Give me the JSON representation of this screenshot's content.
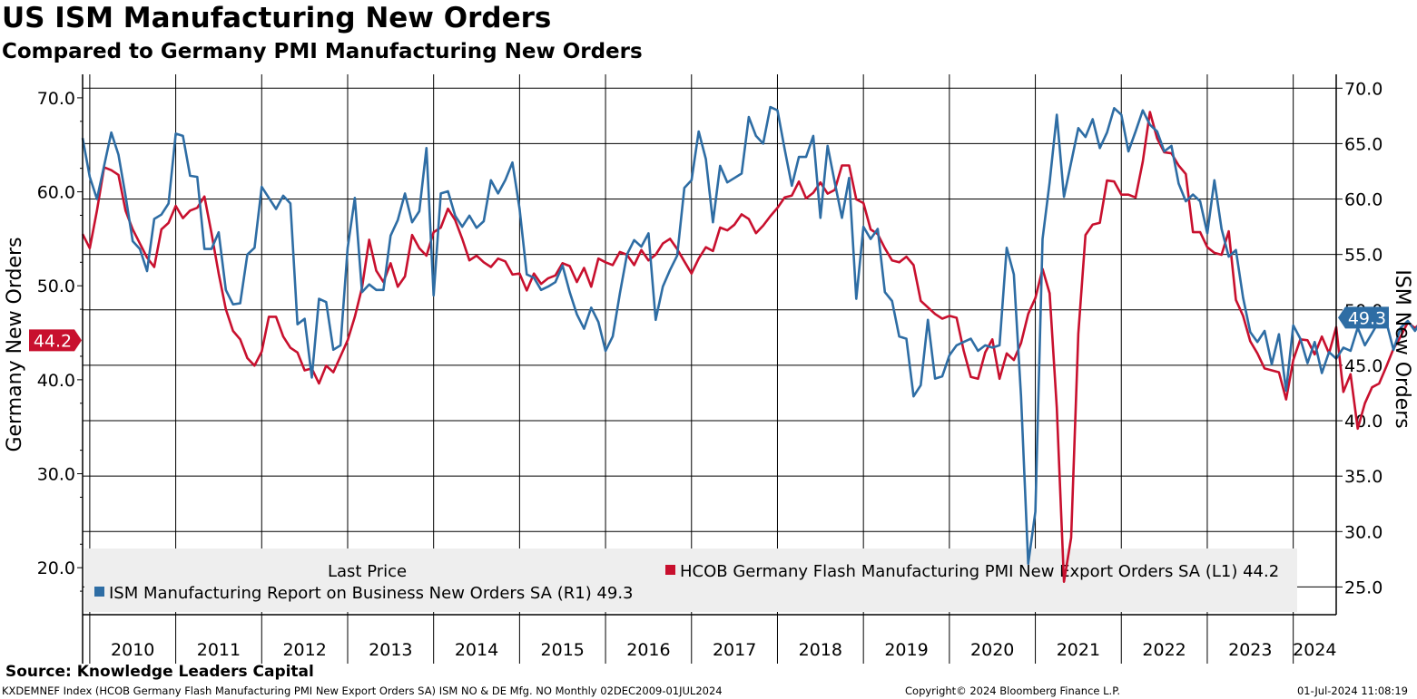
{
  "title": "US ISM Manufacturing New Orders",
  "subtitle": "Compared to Germany PMI Manufacturing New Orders",
  "source": "Source: Knowledge Leaders Capital",
  "footer": {
    "left": "KXDEMNEF Index (HCOB Germany Flash Manufacturing PMI New Export Orders SA) ISM NO & DE Mfg. NO  Monthly 02DEC2009-01JUL2024",
    "copyright": "Copyright© 2024 Bloomberg Finance L.P.",
    "timestamp": "01-Jul-2024 11:08:19"
  },
  "legend": {
    "header": "Last Price",
    "germany": "HCOB Germany Flash Manufacturing PMI New Export Orders SA  (L1) 44.2",
    "ism": "ISM Manufacturing Report on Business New Orders SA  (R1) 49.3"
  },
  "chart_data": {
    "type": "line",
    "ylabel_left": "Germany New Orders",
    "ylabel_right": "ISM New Orders",
    "ylim_left": [
      15,
      72.5
    ],
    "ylim_right": [
      22.5,
      71.25
    ],
    "yticks_left": [
      "20.0",
      "30.0",
      "40.0",
      "50.0",
      "60.0",
      "70.0"
    ],
    "yticks_right": [
      "25.0",
      "30.0",
      "35.0",
      "40.0",
      "45.0",
      "50.0",
      "55.0",
      "60.0",
      "65.0",
      "70.0"
    ],
    "x_start": "2009-12",
    "x_end": "2024-07",
    "years": [
      "2010",
      "2011",
      "2012",
      "2013",
      "2014",
      "2015",
      "2016",
      "2017",
      "2018",
      "2019",
      "2020",
      "2021",
      "2022",
      "2023",
      "2024"
    ],
    "grid": true,
    "legend_position": "bottom",
    "last_labels": {
      "left": "44.2",
      "right": "49.3"
    },
    "colors": {
      "germany": "#c8102e",
      "ism": "#2e6da4"
    },
    "series": [
      {
        "name": "HCOB Germany Flash Manufacturing PMI New Export Orders SA",
        "axis": "left",
        "color": "#c8102e",
        "values": [
          55.5,
          54,
          58,
          62.6,
          62.3,
          61.8,
          58,
          56,
          54.5,
          53,
          52,
          56,
          56.7,
          58.5,
          57.2,
          58,
          58.3,
          59.5,
          55.6,
          51.3,
          47.5,
          45.2,
          44.3,
          42.3,
          41.5,
          43,
          46.7,
          46.7,
          44.6,
          43.4,
          42.9,
          41,
          41.2,
          39.6,
          41.5,
          40.8,
          42.5,
          44.2,
          46.7,
          49.8,
          54.9,
          51.6,
          50.4,
          52.4,
          49.9,
          51,
          55.4,
          54,
          53.2,
          55.7,
          56.2,
          58.2,
          57,
          55,
          52.7,
          53.2,
          52.5,
          52,
          52.9,
          52.6,
          51.2,
          51.3,
          49.5,
          51.3,
          50.2,
          50.8,
          51.1,
          52.4,
          52.1,
          50.4,
          51.9,
          49.9,
          52.9,
          52.5,
          52.2,
          53.6,
          53.3,
          52.2,
          53.8,
          52.7,
          53.3,
          54.5,
          55,
          53.9,
          52.6,
          51.3,
          52.9,
          54.1,
          53.7,
          56.2,
          55.9,
          56.5,
          57.6,
          57.1,
          55.6,
          56.4,
          57.4,
          58.3,
          59.4,
          59.6,
          61.1,
          59.3,
          59.9,
          61,
          59.8,
          60.2,
          62.8,
          62.8,
          59.2,
          58.8,
          56,
          55.5,
          54,
          52.7,
          52.5,
          53.1,
          52.2,
          48.4,
          47.7,
          47,
          46.5,
          46.8,
          46.6,
          43.1,
          40.3,
          40.1,
          42.9,
          44.3,
          40.1,
          42.8,
          42.1,
          43.9,
          47,
          48.7,
          51.8,
          49.2,
          37,
          18.5,
          23.2,
          44.9,
          55.4,
          56.5,
          56.7,
          61.2,
          61.1,
          59.7,
          59.7,
          59.4,
          63.2,
          68.5,
          65.7,
          64.2,
          64.1,
          62.8,
          61.9,
          55.7,
          55.7,
          54.1,
          53.5,
          53.3,
          55.8,
          48.5,
          46.8,
          44.1,
          42.8,
          41.2,
          41,
          40.8,
          37.9,
          42.1,
          44.3,
          44.2,
          42.7,
          44.6,
          42.8,
          45.6,
          38.7,
          40.6,
          34.8,
          37.5,
          39.2,
          39.6,
          41.4,
          43.3,
          44.6,
          46.1,
          45.5,
          46.2,
          46.8,
          49.1,
          44.2
        ]
      },
      {
        "name": "ISM Manufacturing Report on Business New Orders SA",
        "axis": "right",
        "color": "#2e6da4",
        "values": [
          65.5,
          62,
          60,
          63,
          66,
          64,
          60.3,
          56.2,
          55.5,
          53.5,
          58.2,
          58.6,
          59.6,
          65.9,
          65.7,
          62.1,
          62,
          55.5,
          55.5,
          57,
          51.8,
          50.5,
          50.6,
          55,
          55.6,
          61.1,
          60.1,
          59.1,
          60.3,
          59.6,
          48.7,
          49.2,
          43.9,
          51,
          50.7,
          46.4,
          46.8,
          55.6,
          60.1,
          51.6,
          52.3,
          51.8,
          51.8,
          56.7,
          58.1,
          60.5,
          57.9,
          58.9,
          64.6,
          51.3,
          60.5,
          60.7,
          58.5,
          57.5,
          58.5,
          57.4,
          58,
          61.7,
          60.5,
          61.7,
          63.3,
          59.1,
          53.2,
          52.9,
          51.8,
          52.1,
          52.5,
          54,
          51.6,
          49.6,
          48.3,
          50.2,
          48.9,
          46.3,
          47.6,
          51.5,
          55,
          56.3,
          55.7,
          56.9,
          49.1,
          52.1,
          53.6,
          54.9,
          61,
          61.7,
          66.1,
          63.6,
          57.9,
          63,
          61.5,
          61.9,
          62.3,
          67.4,
          65.7,
          65,
          68.3,
          68,
          64.5,
          61.2,
          63.8,
          63.8,
          65.7,
          58.3,
          64.8,
          61.5,
          58.3,
          61.9,
          51,
          57.5,
          56.4,
          57.3,
          51.6,
          50.8,
          47.6,
          47.4,
          42.2,
          43.2,
          49.1,
          43.8,
          44,
          45.9,
          46.8,
          47.1,
          47.4,
          46.3,
          46.8,
          46.6,
          46.8,
          55.6,
          53.2,
          42.2,
          27.1,
          31.8,
          56.4,
          61.5,
          67.6,
          60.2,
          63.3,
          66.4,
          65.6,
          67.2,
          64.6,
          66,
          68.2,
          67.6,
          64.3,
          66.1,
          68,
          66.7,
          66.1,
          64.3,
          64.8,
          61.4,
          59.8,
          60.4,
          59.8,
          56.9,
          61.7,
          57.3,
          54.8,
          55.4,
          51.1,
          48,
          47.1,
          48.1,
          45.1,
          47.8,
          42.7,
          48.6,
          47.4,
          45.2,
          47.1,
          44.3,
          46.2,
          45.6,
          46.6,
          46.3,
          48.4,
          46.8,
          47.9,
          49,
          48.9,
          46.4,
          48.4,
          49,
          48.1,
          49.2,
          52.5,
          49.6,
          51.4,
          45.5,
          45.4,
          49.3
        ]
      }
    ]
  }
}
